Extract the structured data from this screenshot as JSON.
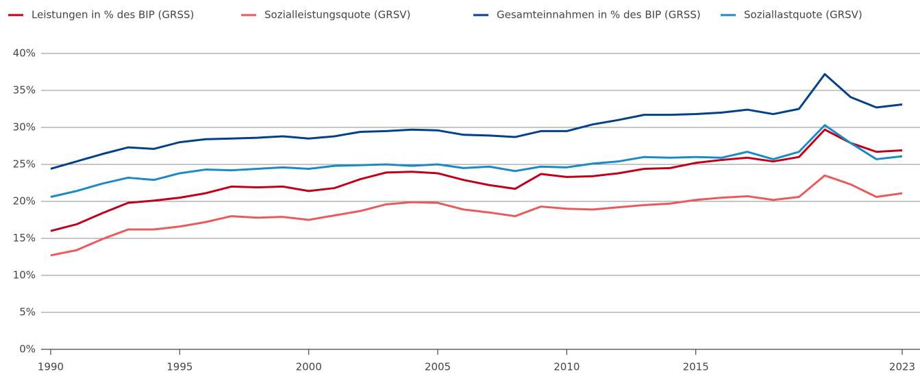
{
  "chart_data": {
    "type": "line",
    "x": [
      1990,
      1991,
      1992,
      1993,
      1994,
      1995,
      1996,
      1997,
      1998,
      1999,
      2000,
      2001,
      2002,
      2003,
      2004,
      2005,
      2006,
      2007,
      2008,
      2009,
      2010,
      2011,
      2012,
      2013,
      2014,
      2015,
      2016,
      2017,
      2018,
      2019,
      2020,
      2021,
      2022,
      2023
    ],
    "series": [
      {
        "name": "Leistungen in % des BIP (GRSS)",
        "color": "#c0001a",
        "values": [
          16.0,
          16.9,
          18.4,
          19.8,
          20.1,
          20.5,
          21.1,
          22.0,
          21.9,
          22.0,
          21.4,
          21.8,
          23.0,
          23.9,
          24.0,
          23.8,
          22.9,
          22.2,
          21.7,
          23.7,
          23.3,
          23.4,
          23.8,
          24.4,
          24.5,
          25.2,
          25.6,
          25.9,
          25.4,
          26.0,
          29.7,
          27.9,
          26.7,
          26.9
        ]
      },
      {
        "name": "Sozialleistungsquote (GRSV)",
        "color": "#eb5a5a",
        "values": [
          12.7,
          13.4,
          14.9,
          16.2,
          16.2,
          16.6,
          17.2,
          18.0,
          17.8,
          17.9,
          17.5,
          18.1,
          18.7,
          19.6,
          19.9,
          19.8,
          18.9,
          18.5,
          18.0,
          19.3,
          19.0,
          18.9,
          19.2,
          19.5,
          19.7,
          20.2,
          20.5,
          20.7,
          20.2,
          20.6,
          23.5,
          22.3,
          20.6,
          21.1
        ]
      },
      {
        "name": "Gesamteinnahmen in % des BIP (GRSS)",
        "color": "#00418a",
        "values": [
          24.4,
          25.4,
          26.4,
          27.3,
          27.1,
          28.0,
          28.4,
          28.5,
          28.6,
          28.8,
          28.5,
          28.8,
          29.4,
          29.5,
          29.7,
          29.6,
          29.0,
          28.9,
          28.7,
          29.5,
          29.5,
          30.4,
          31.0,
          31.7,
          31.7,
          31.8,
          32.0,
          32.4,
          31.8,
          32.5,
          37.2,
          34.1,
          32.7,
          33.1
        ]
      },
      {
        "name": "Soziallastquote (GRSV)",
        "color": "#1a8ac6",
        "values": [
          20.6,
          21.4,
          22.4,
          23.2,
          22.9,
          23.8,
          24.3,
          24.2,
          24.4,
          24.6,
          24.4,
          24.8,
          24.9,
          25.0,
          24.8,
          25.0,
          24.5,
          24.7,
          24.1,
          24.7,
          24.6,
          25.1,
          25.4,
          26.0,
          25.9,
          26.0,
          25.9,
          26.7,
          25.7,
          26.7,
          30.3,
          27.9,
          25.7,
          26.1
        ]
      }
    ],
    "xlim": [
      1990,
      2023
    ],
    "xticks": [
      1990,
      1995,
      2000,
      2005,
      2010,
      2015,
      2023
    ],
    "ylim": [
      0,
      40
    ],
    "yticks": [
      {
        "value": 0,
        "label": "0%"
      },
      {
        "value": 5,
        "label": "5%"
      },
      {
        "value": 10,
        "label": "10%"
      },
      {
        "value": 15,
        "label": "15%"
      },
      {
        "value": 20,
        "label": "20%"
      },
      {
        "value": 25,
        "label": "25%"
      },
      {
        "value": 30,
        "label": "30%"
      },
      {
        "value": 35,
        "label": "35%"
      },
      {
        "value": 40,
        "label": "40%"
      }
    ],
    "grid": true,
    "legend": "top"
  }
}
